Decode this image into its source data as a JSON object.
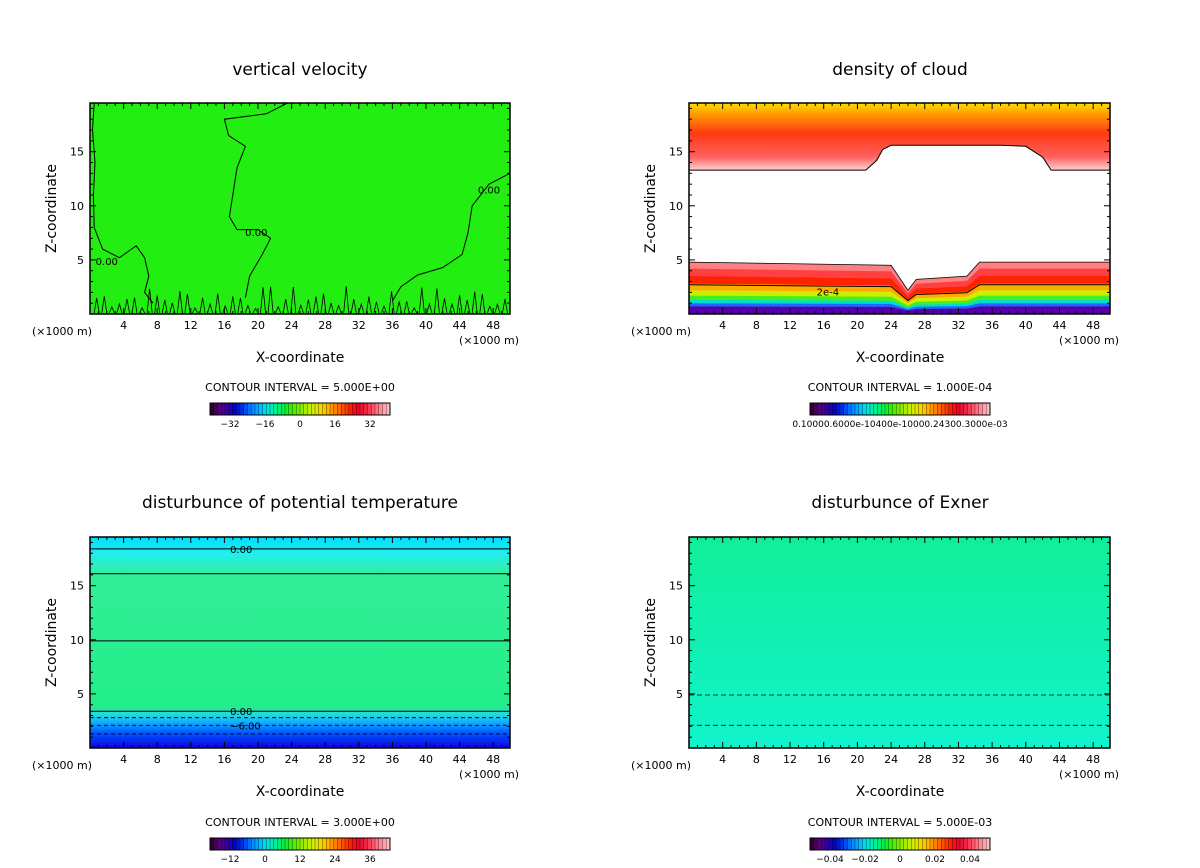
{
  "figure": {
    "background": "#ffffff"
  },
  "chart_data": [
    {
      "id": "w",
      "type": "heatmap",
      "title": "vertical velocity",
      "xlabel": "X-coordinate",
      "ylabel": "Z-coordinate",
      "xunit_left": "(×1000 m)",
      "xunit_right": "(×1000 m)",
      "xlim": [
        0,
        50
      ],
      "ylim": [
        0,
        19.5
      ],
      "xticks": [
        4,
        8,
        12,
        16,
        20,
        24,
        28,
        32,
        36,
        40,
        44,
        48
      ],
      "yticks": [
        5,
        10,
        15
      ],
      "contour_interval_text": "CONTOUR INTERVAL = 5.000E+00",
      "colorbar_ticks": [
        "−32",
        "−16",
        "0",
        "16",
        "32"
      ],
      "fill_color": "#22ee11",
      "contour_labels": [
        {
          "text": "0.00",
          "x": 2,
          "y": 4.9
        },
        {
          "text": "0.00",
          "x": 19.8,
          "y": 7.6
        },
        {
          "text": "0.00",
          "x": 47.5,
          "y": 11.5
        }
      ]
    },
    {
      "id": "qc",
      "type": "heatmap",
      "title": "density of cloud",
      "xlabel": "X-coordinate",
      "ylabel": "Z-coordinate",
      "xunit_left": "(×1000 m)",
      "xunit_right": "(×1000 m)",
      "xlim": [
        0,
        50
      ],
      "ylim": [
        0,
        19.5
      ],
      "xticks": [
        4,
        8,
        12,
        16,
        20,
        24,
        28,
        32,
        36,
        40,
        44,
        48
      ],
      "yticks": [
        5,
        10,
        15
      ],
      "contour_interval_text": "CONTOUR INTERVAL = 1.000E-04",
      "colorbar_ticks_text": "0.10000.6000e-10400e-10000.24300.3000e-03",
      "contour_labels": [
        {
          "text": "2e-4",
          "x": 16.5,
          "y": 2.1
        }
      ]
    },
    {
      "id": "theta",
      "type": "heatmap",
      "title": "disturbunce of potential temperature",
      "xlabel": "X-coordinate",
      "ylabel": "Z-coordinate",
      "xunit_left": "(×1000 m)",
      "xunit_right": "(×1000 m)",
      "xlim": [
        0,
        50
      ],
      "ylim": [
        0,
        19.5
      ],
      "xticks": [
        4,
        8,
        12,
        16,
        20,
        24,
        28,
        32,
        36,
        40,
        44,
        48
      ],
      "yticks": [
        5,
        10,
        15
      ],
      "contour_interval_text": "CONTOUR INTERVAL = 3.000E+00",
      "colorbar_ticks": [
        "−12",
        "0",
        "12",
        "24",
        "36"
      ],
      "contour_labels": [
        {
          "text": "0.00",
          "x": 18,
          "y": 18.4
        },
        {
          "text": "0.00",
          "x": 18,
          "y": 3.4
        },
        {
          "text": "−6.00",
          "x": 18.5,
          "y": 2.1
        }
      ]
    },
    {
      "id": "exner",
      "type": "heatmap",
      "title": "disturbunce of Exner",
      "xlabel": "X-coordinate",
      "ylabel": "Z-coordinate",
      "xunit_left": "(×1000 m)",
      "xunit_right": "(×1000 m)",
      "xlim": [
        0,
        50
      ],
      "ylim": [
        0,
        19.5
      ],
      "xticks": [
        4,
        8,
        12,
        16,
        20,
        24,
        28,
        32,
        36,
        40,
        44,
        48
      ],
      "yticks": [
        5,
        10,
        15
      ],
      "contour_interval_text": "CONTOUR INTERVAL = 5.000E-03",
      "colorbar_ticks": [
        "−0.04",
        "−0.02",
        "0",
        "0.02",
        "0.04"
      ],
      "fill_top": "#11ee99",
      "fill_bottom": "#11f3cc",
      "dashed_levels": [
        4.9,
        2.1
      ]
    }
  ]
}
